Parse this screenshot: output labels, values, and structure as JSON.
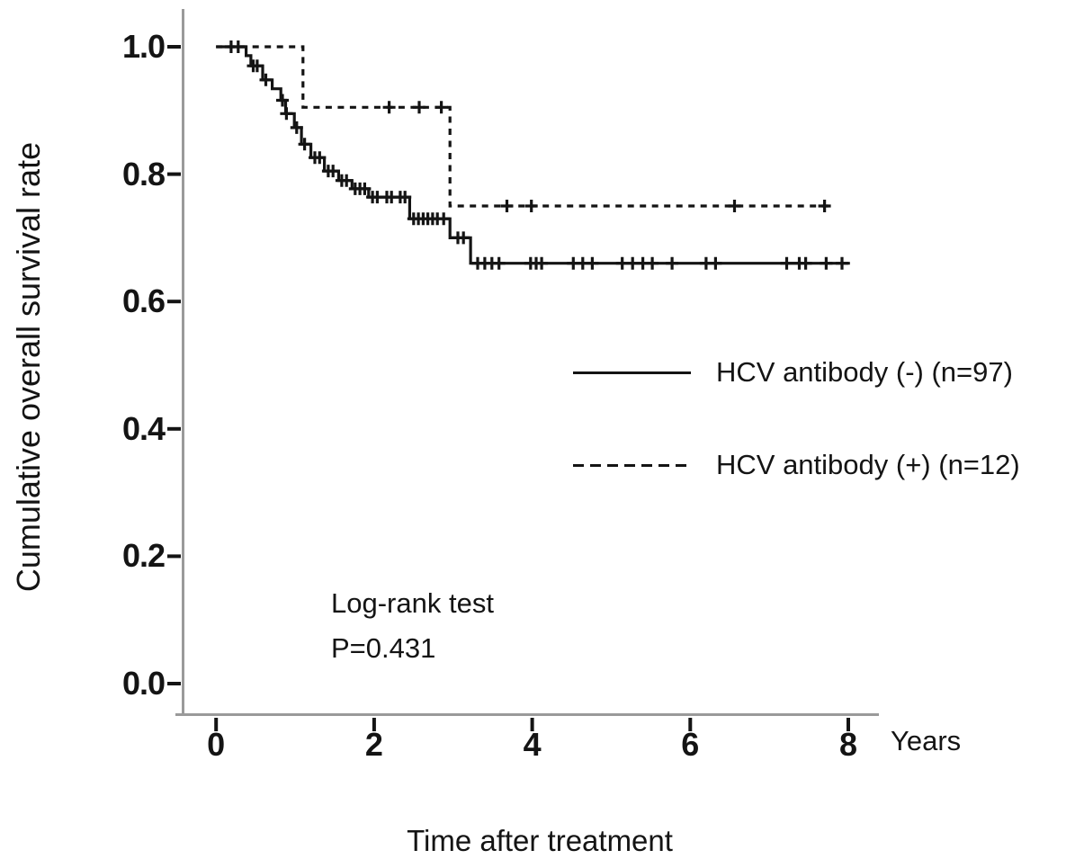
{
  "figure_colors": {
    "background": "#ffffff",
    "curve_color": "#141414",
    "axis_line_color": "#9a9a9a",
    "tick_color": "#141414"
  },
  "chart_data": {
    "type": "line",
    "subtype": "kaplan-meier-step-curves",
    "title": "",
    "xlabel": "Time after treatment",
    "x_unit_label": "Years",
    "ylabel": "Cumulative overall survival rate",
    "xlim": [
      0,
      8
    ],
    "ylim": [
      0.0,
      1.0
    ],
    "grid": false,
    "legend_position": "center-right",
    "xticks": [
      "0",
      "2",
      "4",
      "6",
      "8"
    ],
    "yticks": [
      "1.0",
      "0.8",
      "0.6",
      "0.4",
      "0.2",
      "0.0"
    ],
    "annotations": [
      "Log-rank test",
      "P=0.431"
    ],
    "series": [
      {
        "name": "HCV antibody (-) (n=97)",
        "line": "solid",
        "n": 97,
        "steps": [
          [
            0.0,
            1.0
          ],
          [
            0.38,
            0.986
          ],
          [
            0.44,
            0.97
          ],
          [
            0.59,
            0.948
          ],
          [
            0.71,
            0.934
          ],
          [
            0.82,
            0.916
          ],
          [
            0.88,
            0.895
          ],
          [
            0.99,
            0.873
          ],
          [
            1.08,
            0.847
          ],
          [
            1.2,
            0.826
          ],
          [
            1.37,
            0.805
          ],
          [
            1.55,
            0.79
          ],
          [
            1.72,
            0.777
          ],
          [
            1.93,
            0.764
          ],
          [
            2.45,
            0.73
          ],
          [
            2.96,
            0.7
          ],
          [
            3.22,
            0.66
          ]
        ],
        "end_x": 8.02,
        "censor_times": [
          0.19,
          0.28,
          0.47,
          0.52,
          0.63,
          0.84,
          0.89,
          1.02,
          1.12,
          1.25,
          1.31,
          1.42,
          1.48,
          1.59,
          1.65,
          1.76,
          1.82,
          1.88,
          1.98,
          2.04,
          2.16,
          2.22,
          2.33,
          2.39,
          2.5,
          2.56,
          2.62,
          2.68,
          2.74,
          2.8,
          2.88,
          3.06,
          3.13,
          3.31,
          3.4,
          3.49,
          3.58,
          3.98,
          4.05,
          4.12,
          4.52,
          4.64,
          4.76,
          5.14,
          5.27,
          5.4,
          5.52,
          5.77,
          6.2,
          6.32,
          7.22,
          7.38,
          7.46,
          7.72,
          7.92
        ]
      },
      {
        "name": "HCV antibody (+) (n=12)",
        "line": "dashed",
        "n": 12,
        "steps": [
          [
            0.0,
            1.0
          ],
          [
            1.1,
            0.905
          ],
          [
            2.96,
            0.75
          ]
        ],
        "end_x": 7.75,
        "censor_times": [
          2.19,
          2.57,
          2.85,
          3.68,
          3.99,
          6.56,
          7.7
        ]
      }
    ]
  }
}
